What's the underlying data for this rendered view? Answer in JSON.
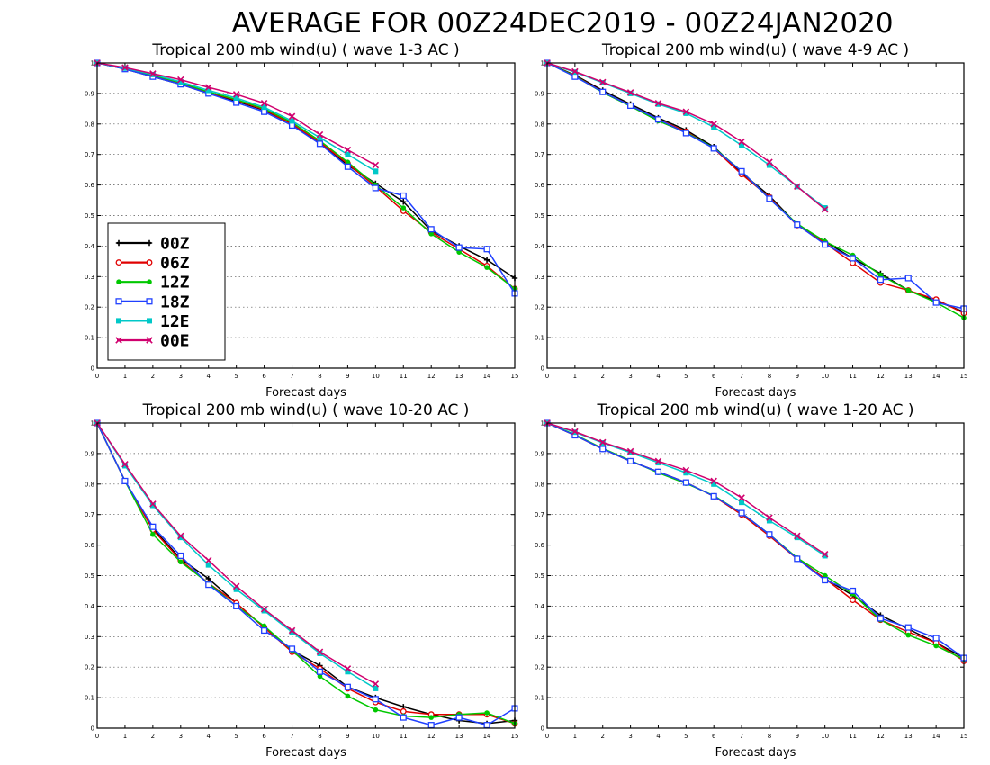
{
  "title": "AVERAGE FOR 00Z24DEC2019 - 00Z24JAN2020",
  "legend": {
    "entries": [
      {
        "label": "00Z",
        "color": "#000000",
        "marker": "plus"
      },
      {
        "label": "06Z",
        "color": "#e00000",
        "marker": "circle"
      },
      {
        "label": "12Z",
        "color": "#00c800",
        "marker": "dot"
      },
      {
        "label": "18Z",
        "color": "#2040ff",
        "marker": "square"
      },
      {
        "label": "12E",
        "color": "#00c8c8",
        "marker": "filled-square"
      },
      {
        "label": "00E",
        "color": "#d0006e",
        "marker": "x"
      }
    ]
  },
  "chart_data": [
    {
      "type": "line",
      "title": "Tropical 200 mb wind(u) ( wave 1-3 AC )",
      "xlabel": "Forecast days",
      "ylabel": "",
      "xlim": [
        0,
        15
      ],
      "ylim": [
        0,
        1
      ],
      "xticks": [
        "0",
        "1",
        "2",
        "3",
        "4",
        "5",
        "6",
        "7",
        "8",
        "9",
        "10",
        "11",
        "12",
        "13",
        "14",
        "15"
      ],
      "yticks": [
        "0",
        "0.1",
        "0.2",
        "0.3",
        "0.4",
        "0.5",
        "0.6",
        "0.7",
        "0.8",
        "0.9",
        "1"
      ],
      "grid": "horizontal-dotted",
      "legend_position": "lower-left",
      "series": [
        {
          "name": "00Z",
          "x": [
            0,
            1,
            2,
            3,
            4,
            5,
            6,
            7,
            8,
            9,
            10,
            11,
            12,
            13,
            14,
            15
          ],
          "values": [
            1.0,
            0.98,
            0.955,
            0.93,
            0.9,
            0.875,
            0.845,
            0.8,
            0.735,
            0.665,
            0.605,
            0.545,
            0.45,
            0.4,
            0.355,
            0.295
          ]
        },
        {
          "name": "06Z",
          "x": [
            0,
            1,
            2,
            3,
            4,
            5,
            6,
            7,
            8,
            9,
            10,
            11,
            12,
            13,
            14,
            15
          ],
          "values": [
            1.0,
            0.982,
            0.958,
            0.932,
            0.903,
            0.878,
            0.847,
            0.8,
            0.74,
            0.67,
            0.595,
            0.515,
            0.445,
            0.39,
            0.335,
            0.26
          ]
        },
        {
          "name": "12Z",
          "x": [
            0,
            1,
            2,
            3,
            4,
            5,
            6,
            7,
            8,
            9,
            10,
            11,
            12,
            13,
            14,
            15
          ],
          "values": [
            1.0,
            0.982,
            0.96,
            0.935,
            0.905,
            0.88,
            0.85,
            0.805,
            0.745,
            0.675,
            0.6,
            0.525,
            0.44,
            0.38,
            0.33,
            0.26
          ]
        },
        {
          "name": "18Z",
          "x": [
            0,
            1,
            2,
            3,
            4,
            5,
            6,
            7,
            8,
            9,
            10,
            11,
            12,
            13,
            14,
            15
          ],
          "values": [
            1.0,
            0.98,
            0.955,
            0.93,
            0.9,
            0.87,
            0.84,
            0.795,
            0.735,
            0.66,
            0.59,
            0.565,
            0.455,
            0.395,
            0.39,
            0.245
          ]
        },
        {
          "name": "12E",
          "x": [
            0,
            1,
            2,
            3,
            4,
            5,
            6,
            7,
            8,
            9,
            10
          ],
          "values": [
            1.0,
            0.983,
            0.962,
            0.938,
            0.91,
            0.885,
            0.855,
            0.81,
            0.755,
            0.7,
            0.645
          ]
        },
        {
          "name": "00E",
          "x": [
            0,
            1,
            2,
            3,
            4,
            5,
            6,
            7,
            8,
            9,
            10
          ],
          "values": [
            1.0,
            0.985,
            0.965,
            0.945,
            0.92,
            0.897,
            0.868,
            0.825,
            0.765,
            0.715,
            0.665
          ]
        }
      ]
    },
    {
      "type": "line",
      "title": "Tropical 200 mb wind(u) ( wave 4-9 AC )",
      "xlabel": "Forecast days",
      "ylabel": "",
      "xlim": [
        0,
        15
      ],
      "ylim": [
        0,
        1
      ],
      "xticks": [
        "0",
        "1",
        "2",
        "3",
        "4",
        "5",
        "6",
        "7",
        "8",
        "9",
        "10",
        "11",
        "12",
        "13",
        "14",
        "15"
      ],
      "yticks": [
        "0",
        "0.1",
        "0.2",
        "0.3",
        "0.4",
        "0.5",
        "0.6",
        "0.7",
        "0.8",
        "0.9",
        "1"
      ],
      "grid": "horizontal-dotted",
      "series": [
        {
          "name": "00Z",
          "x": [
            0,
            1,
            2,
            3,
            4,
            5,
            6,
            7,
            8,
            9,
            10,
            11,
            12,
            13,
            14,
            15
          ],
          "values": [
            1.0,
            0.96,
            0.91,
            0.865,
            0.82,
            0.78,
            0.725,
            0.64,
            0.565,
            0.47,
            0.415,
            0.36,
            0.31,
            0.255,
            0.22,
            0.185
          ]
        },
        {
          "name": "06Z",
          "x": [
            0,
            1,
            2,
            3,
            4,
            5,
            6,
            7,
            8,
            9,
            10,
            11,
            12,
            13,
            14,
            15
          ],
          "values": [
            1.0,
            0.958,
            0.905,
            0.86,
            0.815,
            0.775,
            0.72,
            0.635,
            0.56,
            0.468,
            0.41,
            0.345,
            0.28,
            0.255,
            0.225,
            0.18
          ]
        },
        {
          "name": "12Z",
          "x": [
            0,
            1,
            2,
            3,
            4,
            5,
            6,
            7,
            8,
            9,
            10,
            11,
            12,
            13,
            14,
            15
          ],
          "values": [
            1.0,
            0.957,
            0.903,
            0.858,
            0.81,
            0.772,
            0.722,
            0.645,
            0.555,
            0.473,
            0.415,
            0.37,
            0.305,
            0.255,
            0.215,
            0.165
          ]
        },
        {
          "name": "18Z",
          "x": [
            0,
            1,
            2,
            3,
            4,
            5,
            6,
            7,
            8,
            9,
            10,
            11,
            12,
            13,
            14,
            15
          ],
          "values": [
            1.0,
            0.955,
            0.905,
            0.86,
            0.815,
            0.77,
            0.72,
            0.645,
            0.555,
            0.47,
            0.405,
            0.36,
            0.29,
            0.295,
            0.215,
            0.195
          ]
        },
        {
          "name": "12E",
          "x": [
            0,
            1,
            2,
            3,
            4,
            5,
            6,
            7,
            8,
            9,
            10
          ],
          "values": [
            1.0,
            0.97,
            0.935,
            0.9,
            0.865,
            0.835,
            0.79,
            0.73,
            0.665,
            0.595,
            0.525
          ]
        },
        {
          "name": "00E",
          "x": [
            0,
            1,
            2,
            3,
            4,
            5,
            6,
            7,
            8,
            9,
            10
          ],
          "values": [
            1.0,
            0.972,
            0.937,
            0.903,
            0.868,
            0.84,
            0.8,
            0.742,
            0.675,
            0.595,
            0.52
          ]
        }
      ]
    },
    {
      "type": "line",
      "title": "Tropical 200 mb wind(u) ( wave 10-20 AC )",
      "xlabel": "Forecast days",
      "ylabel": "",
      "xlim": [
        0,
        15
      ],
      "ylim": [
        0,
        1
      ],
      "xticks": [
        "0",
        "1",
        "2",
        "3",
        "4",
        "5",
        "6",
        "7",
        "8",
        "9",
        "10",
        "11",
        "12",
        "13",
        "14",
        "15"
      ],
      "yticks": [
        "0",
        "0.1",
        "0.2",
        "0.3",
        "0.4",
        "0.5",
        "0.6",
        "0.7",
        "0.8",
        "0.9",
        "1"
      ],
      "grid": "horizontal-dotted",
      "series": [
        {
          "name": "00Z",
          "x": [
            0,
            1,
            2,
            3,
            4,
            5,
            6,
            7,
            8,
            9,
            10,
            11,
            12,
            13,
            14,
            15
          ],
          "values": [
            1.0,
            0.81,
            0.655,
            0.555,
            0.49,
            0.41,
            0.33,
            0.255,
            0.205,
            0.135,
            0.1,
            0.07,
            0.045,
            0.025,
            0.015,
            0.025
          ]
        },
        {
          "name": "06Z",
          "x": [
            0,
            1,
            2,
            3,
            4,
            5,
            6,
            7,
            8,
            9,
            10,
            11,
            12,
            13,
            14,
            15
          ],
          "values": [
            1.0,
            0.81,
            0.65,
            0.55,
            0.475,
            0.41,
            0.33,
            0.25,
            0.195,
            0.13,
            0.085,
            0.055,
            0.045,
            0.045,
            0.045,
            0.015
          ]
        },
        {
          "name": "12Z",
          "x": [
            0,
            1,
            2,
            3,
            4,
            5,
            6,
            7,
            8,
            9,
            10,
            11,
            12,
            13,
            14,
            15
          ],
          "values": [
            1.0,
            0.81,
            0.635,
            0.545,
            0.475,
            0.4,
            0.335,
            0.255,
            0.17,
            0.105,
            0.06,
            0.04,
            0.035,
            0.045,
            0.05,
            0.015
          ]
        },
        {
          "name": "18Z",
          "x": [
            0,
            1,
            2,
            3,
            4,
            5,
            6,
            7,
            8,
            9,
            10,
            11,
            12,
            13,
            14,
            15
          ],
          "values": [
            1.0,
            0.81,
            0.66,
            0.565,
            0.47,
            0.4,
            0.32,
            0.26,
            0.185,
            0.135,
            0.095,
            0.035,
            0.01,
            0.035,
            0.01,
            0.065
          ]
        },
        {
          "name": "12E",
          "x": [
            0,
            1,
            2,
            3,
            4,
            5,
            6,
            7,
            8,
            9,
            10
          ],
          "values": [
            1.0,
            0.86,
            0.73,
            0.625,
            0.535,
            0.455,
            0.385,
            0.315,
            0.245,
            0.185,
            0.13
          ]
        },
        {
          "name": "00E",
          "x": [
            0,
            1,
            2,
            3,
            4,
            5,
            6,
            7,
            8,
            9,
            10
          ],
          "values": [
            1.0,
            0.865,
            0.735,
            0.63,
            0.55,
            0.465,
            0.39,
            0.32,
            0.25,
            0.195,
            0.145
          ]
        }
      ]
    },
    {
      "type": "line",
      "title": "Tropical 200 mb wind(u) ( wave 1-20 AC )",
      "xlabel": "Forecast days",
      "ylabel": "",
      "xlim": [
        0,
        15
      ],
      "ylim": [
        0,
        1
      ],
      "xticks": [
        "0",
        "1",
        "2",
        "3",
        "4",
        "5",
        "6",
        "7",
        "8",
        "9",
        "10",
        "11",
        "12",
        "13",
        "14",
        "15"
      ],
      "yticks": [
        "0",
        "0.1",
        "0.2",
        "0.3",
        "0.4",
        "0.5",
        "0.6",
        "0.7",
        "0.8",
        "0.9",
        "1"
      ],
      "grid": "horizontal-dotted",
      "series": [
        {
          "name": "00Z",
          "x": [
            0,
            1,
            2,
            3,
            4,
            5,
            6,
            7,
            8,
            9,
            10,
            11,
            12,
            13,
            14,
            15
          ],
          "values": [
            1.0,
            0.96,
            0.915,
            0.875,
            0.84,
            0.805,
            0.76,
            0.705,
            0.635,
            0.555,
            0.49,
            0.435,
            0.37,
            0.325,
            0.28,
            0.23
          ]
        },
        {
          "name": "06Z",
          "x": [
            0,
            1,
            2,
            3,
            4,
            5,
            6,
            7,
            8,
            9,
            10,
            11,
            12,
            13,
            14,
            15
          ],
          "values": [
            1.0,
            0.96,
            0.915,
            0.875,
            0.84,
            0.805,
            0.76,
            0.7,
            0.63,
            0.555,
            0.49,
            0.42,
            0.355,
            0.315,
            0.28,
            0.22
          ]
        },
        {
          "name": "12Z",
          "x": [
            0,
            1,
            2,
            3,
            4,
            5,
            6,
            7,
            8,
            9,
            10,
            11,
            12,
            13,
            14,
            15
          ],
          "values": [
            1.0,
            0.962,
            0.917,
            0.877,
            0.837,
            0.802,
            0.762,
            0.705,
            0.635,
            0.558,
            0.5,
            0.44,
            0.355,
            0.305,
            0.27,
            0.225
          ]
        },
        {
          "name": "18Z",
          "x": [
            0,
            1,
            2,
            3,
            4,
            5,
            6,
            7,
            8,
            9,
            10,
            11,
            12,
            13,
            14,
            15
          ],
          "values": [
            1.0,
            0.96,
            0.915,
            0.875,
            0.84,
            0.805,
            0.76,
            0.705,
            0.635,
            0.555,
            0.485,
            0.45,
            0.36,
            0.33,
            0.295,
            0.23
          ]
        },
        {
          "name": "12E",
          "x": [
            0,
            1,
            2,
            3,
            4,
            5,
            6,
            7,
            8,
            9,
            10
          ],
          "values": [
            1.0,
            0.97,
            0.935,
            0.903,
            0.87,
            0.837,
            0.8,
            0.74,
            0.68,
            0.625,
            0.565
          ]
        },
        {
          "name": "00E",
          "x": [
            0,
            1,
            2,
            3,
            4,
            5,
            6,
            7,
            8,
            9,
            10
          ],
          "values": [
            1.0,
            0.972,
            0.937,
            0.907,
            0.875,
            0.845,
            0.81,
            0.755,
            0.69,
            0.63,
            0.57
          ]
        }
      ]
    }
  ]
}
